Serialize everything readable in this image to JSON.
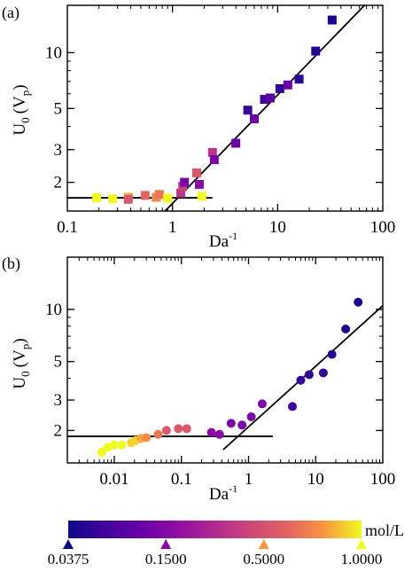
{
  "chart_data": [
    {
      "panel_label": "(a)",
      "type": "scatter",
      "scale": "log-log",
      "xlabel": "Da",
      "xlabel_sup": "-1",
      "ylabel": "U",
      "ylabel_sub": "0",
      "ylabel_paren": "(V",
      "ylabel_paren_sub": "p",
      "ylabel_close": ")",
      "xlim": [
        0.1,
        100
      ],
      "ylim": [
        1.4,
        18
      ],
      "xticks": [
        {
          "v": 0.1,
          "label": "0.1"
        },
        {
          "v": 1,
          "label": "1"
        },
        {
          "v": 10,
          "label": "10"
        },
        {
          "v": 100,
          "label": "100"
        }
      ],
      "yticks": [
        {
          "v": 2,
          "label": "2"
        },
        {
          "v": 3,
          "label": "3"
        },
        {
          "v": 5,
          "label": "5"
        },
        {
          "v": 10,
          "label": "10"
        }
      ],
      "marker": "square",
      "points": [
        {
          "x": 0.19,
          "y": 1.65,
          "c": 1.0
        },
        {
          "x": 0.27,
          "y": 1.63,
          "c": 1.0
        },
        {
          "x": 0.38,
          "y": 1.66,
          "c": 0.9
        },
        {
          "x": 0.38,
          "y": 1.62,
          "c": 0.7
        },
        {
          "x": 0.55,
          "y": 1.7,
          "c": 0.75
        },
        {
          "x": 0.7,
          "y": 1.66,
          "c": 0.85
        },
        {
          "x": 0.75,
          "y": 1.72,
          "c": 0.8
        },
        {
          "x": 0.9,
          "y": 1.64,
          "c": 1.0
        },
        {
          "x": 1.2,
          "y": 1.75,
          "c": 0.55
        },
        {
          "x": 1.25,
          "y": 1.9,
          "c": 0.6
        },
        {
          "x": 1.3,
          "y": 2.0,
          "c": 0.3
        },
        {
          "x": 1.7,
          "y": 2.25,
          "c": 0.7
        },
        {
          "x": 1.8,
          "y": 1.95,
          "c": 0.35
        },
        {
          "x": 1.9,
          "y": 1.68,
          "c": 1.0
        },
        {
          "x": 2.4,
          "y": 2.9,
          "c": 0.55
        },
        {
          "x": 2.5,
          "y": 2.65,
          "c": 0.3
        },
        {
          "x": 4.0,
          "y": 3.25,
          "c": 0.25
        },
        {
          "x": 5.2,
          "y": 4.9,
          "c": 0.1
        },
        {
          "x": 6.0,
          "y": 4.4,
          "c": 0.25
        },
        {
          "x": 7.5,
          "y": 5.6,
          "c": 0.12
        },
        {
          "x": 8.5,
          "y": 5.7,
          "c": 0.2
        },
        {
          "x": 10.5,
          "y": 6.4,
          "c": 0.08
        },
        {
          "x": 12.5,
          "y": 6.7,
          "c": 0.25
        },
        {
          "x": 16.0,
          "y": 7.2,
          "c": 0.06
        },
        {
          "x": 23.0,
          "y": 10.2,
          "c": 0.05
        },
        {
          "x": 33.0,
          "y": 15.0,
          "c": 0.04
        }
      ],
      "fit_lines": [
        {
          "x": [
            0.1,
            2.4
          ],
          "y": [
            1.65,
            1.65
          ]
        },
        {
          "x": [
            0.85,
            67
          ],
          "y": [
            1.4,
            18
          ]
        }
      ]
    },
    {
      "panel_label": "(b)",
      "type": "scatter",
      "scale": "log-log",
      "xlabel": "Da",
      "xlabel_sup": "-1",
      "ylabel": "U",
      "ylabel_sub": "0",
      "ylabel_paren": "(V",
      "ylabel_paren_sub": "p",
      "ylabel_close": ")",
      "xlim": [
        0.002,
        100
      ],
      "ylim": [
        1.3,
        20
      ],
      "xticks": [
        {
          "v": 0.01,
          "label": "0.01"
        },
        {
          "v": 0.1,
          "label": "0.1"
        },
        {
          "v": 1,
          "label": "1"
        },
        {
          "v": 10,
          "label": "10"
        },
        {
          "v": 100,
          "label": "100"
        }
      ],
      "yticks": [
        {
          "v": 2,
          "label": "2"
        },
        {
          "v": 3,
          "label": "3"
        },
        {
          "v": 5,
          "label": "5"
        },
        {
          "v": 10,
          "label": "10"
        }
      ],
      "marker": "circle",
      "points": [
        {
          "x": 0.0065,
          "y": 1.5,
          "c": 1.0
        },
        {
          "x": 0.008,
          "y": 1.6,
          "c": 1.0
        },
        {
          "x": 0.01,
          "y": 1.65,
          "c": 1.0
        },
        {
          "x": 0.013,
          "y": 1.65,
          "c": 1.0
        },
        {
          "x": 0.018,
          "y": 1.7,
          "c": 0.95
        },
        {
          "x": 0.021,
          "y": 1.75,
          "c": 0.95
        },
        {
          "x": 0.025,
          "y": 1.8,
          "c": 0.9
        },
        {
          "x": 0.03,
          "y": 1.82,
          "c": 0.85
        },
        {
          "x": 0.045,
          "y": 1.9,
          "c": 0.8
        },
        {
          "x": 0.06,
          "y": 2.0,
          "c": 0.7
        },
        {
          "x": 0.09,
          "y": 2.05,
          "c": 0.7
        },
        {
          "x": 0.12,
          "y": 2.05,
          "c": 0.7
        },
        {
          "x": 0.28,
          "y": 1.95,
          "c": 0.35
        },
        {
          "x": 0.37,
          "y": 1.9,
          "c": 0.35
        },
        {
          "x": 0.55,
          "y": 2.2,
          "c": 0.3
        },
        {
          "x": 0.8,
          "y": 2.15,
          "c": 0.3
        },
        {
          "x": 1.1,
          "y": 2.4,
          "c": 0.3
        },
        {
          "x": 1.6,
          "y": 2.85,
          "c": 0.3
        },
        {
          "x": 4.5,
          "y": 2.75,
          "c": 0.12
        },
        {
          "x": 6.0,
          "y": 3.9,
          "c": 0.1
        },
        {
          "x": 8.0,
          "y": 4.2,
          "c": 0.08
        },
        {
          "x": 13.0,
          "y": 4.3,
          "c": 0.08
        },
        {
          "x": 17.5,
          "y": 5.5,
          "c": 0.06
        },
        {
          "x": 28.0,
          "y": 7.7,
          "c": 0.04
        },
        {
          "x": 43.0,
          "y": 11.0,
          "c": 0.03
        }
      ],
      "fit_lines": [
        {
          "x": [
            0.002,
            2.3
          ],
          "y": [
            1.85,
            1.85
          ]
        },
        {
          "x": [
            0.42,
            100
          ],
          "y": [
            1.55,
            10.5
          ]
        }
      ]
    }
  ],
  "colorbar": {
    "unit_label": "mol/L",
    "colormap": "plasma",
    "ticks": [
      {
        "label": "0.0375",
        "frac": 0.0
      },
      {
        "label": "0.1500",
        "frac": 0.333
      },
      {
        "label": "0.5000",
        "frac": 0.667
      },
      {
        "label": "1.0000",
        "frac": 1.0
      }
    ],
    "marker_colors": [
      "#0d0887",
      "#8b0aa5",
      "#f89540",
      "#f0f921"
    ]
  }
}
